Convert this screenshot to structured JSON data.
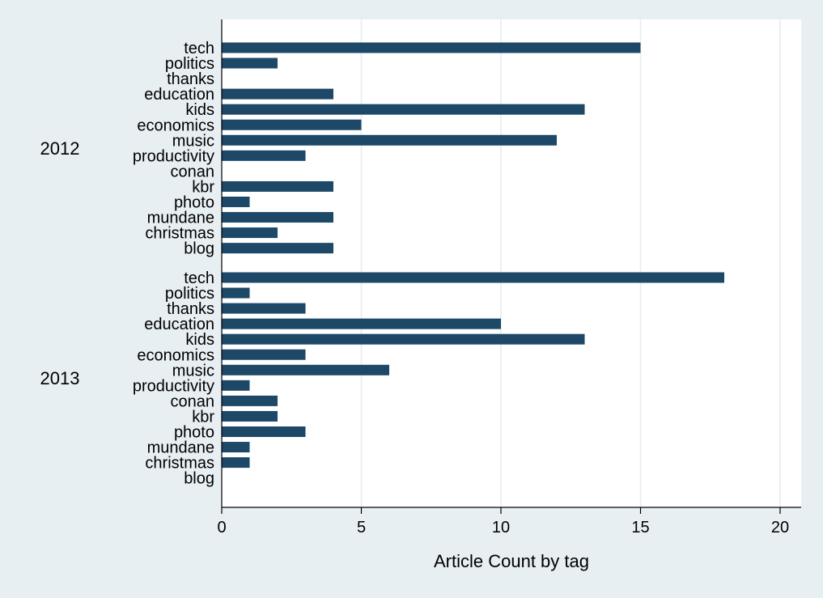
{
  "chart_data": {
    "type": "bar",
    "orientation": "horizontal",
    "xlabel": "Article Count by tag",
    "xlim": [
      0,
      20.8
    ],
    "xticks": [
      0,
      5,
      10,
      15,
      20
    ],
    "grid": true,
    "bar_color": "#1e4868",
    "background_color": "#e8eff2",
    "plot_background_color": "#ffffff",
    "groups": [
      {
        "name": "2012",
        "categories": [
          "tech",
          "politics",
          "thanks",
          "education",
          "kids",
          "economics",
          "music",
          "productivity",
          "conan",
          "kbr",
          "photo",
          "mundane",
          "christmas",
          "blog"
        ],
        "values": [
          15,
          2,
          0,
          4,
          13,
          5,
          12,
          3,
          0,
          4,
          1,
          4,
          2,
          4
        ]
      },
      {
        "name": "2013",
        "categories": [
          "tech",
          "politics",
          "thanks",
          "education",
          "kids",
          "economics",
          "music",
          "productivity",
          "conan",
          "kbr",
          "photo",
          "mundane",
          "christmas",
          "blog"
        ],
        "values": [
          18,
          1,
          3,
          10,
          13,
          3,
          6,
          1,
          2,
          2,
          3,
          1,
          1,
          0
        ]
      }
    ]
  }
}
